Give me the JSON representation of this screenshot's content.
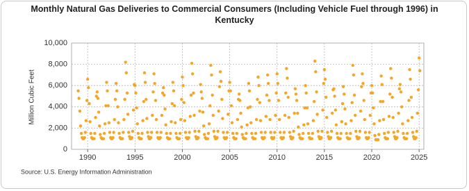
{
  "chart_data": {
    "type": "scatter",
    "title": "Monthly Natural Gas Deliveries to Commercial Consumers (Including Vehicle Fuel through 1996) in Kentucky",
    "y_label": "Million Cubic Feet",
    "source": "Source: U.S. Energy Information Administration",
    "color": "#f5a623",
    "grid": true,
    "xlim": [
      1988.3,
      2025.5
    ],
    "xticks": [
      1990,
      1995,
      2000,
      2005,
      2010,
      2015,
      2020,
      2025
    ],
    "ylim": [
      0,
      10000
    ],
    "yticks": [
      0,
      {
        "value": 2000,
        "label": "2,000"
      },
      {
        "value": 4000,
        "label": "4,000"
      },
      {
        "value": 6000,
        "label": "6,000"
      },
      {
        "value": 8000,
        "label": "8,000"
      },
      {
        "value": 10000,
        "label": "10,000"
      }
    ],
    "x": [
      1989,
      1989.08,
      1989.17,
      1989.25,
      1989.33,
      1989.42,
      1989.5,
      1989.58,
      1989.67,
      1989.75,
      1989.83,
      1989.92,
      1990,
      1990.08,
      1990.17,
      1990.25,
      1990.33,
      1990.42,
      1990.5,
      1990.58,
      1990.67,
      1990.75,
      1990.83,
      1990.92,
      1991,
      1991.08,
      1991.17,
      1991.25,
      1991.33,
      1991.42,
      1991.5,
      1991.58,
      1991.67,
      1991.75,
      1991.83,
      1991.92,
      1992,
      1992.08,
      1992.17,
      1992.25,
      1992.33,
      1992.42,
      1992.5,
      1992.58,
      1992.67,
      1992.75,
      1992.83,
      1992.92,
      1993,
      1993.08,
      1993.17,
      1993.25,
      1993.33,
      1993.42,
      1993.5,
      1993.58,
      1993.67,
      1993.75,
      1993.83,
      1993.92,
      1994,
      1994.08,
      1994.17,
      1994.25,
      1994.33,
      1994.42,
      1994.5,
      1994.58,
      1994.67,
      1994.75,
      1994.83,
      1994.92,
      1995,
      1995.08,
      1995.17,
      1995.25,
      1995.33,
      1995.42,
      1995.5,
      1995.58,
      1995.67,
      1995.75,
      1995.83,
      1995.92,
      1996,
      1996.08,
      1996.17,
      1996.25,
      1996.33,
      1996.42,
      1996.5,
      1996.58,
      1996.67,
      1996.75,
      1996.83,
      1996.92,
      1997,
      1997.08,
      1997.17,
      1997.25,
      1997.33,
      1997.42,
      1997.5,
      1997.58,
      1997.67,
      1997.75,
      1997.83,
      1997.92,
      1998,
      1998.08,
      1998.17,
      1998.25,
      1998.33,
      1998.42,
      1998.5,
      1998.58,
      1998.67,
      1998.75,
      1998.83,
      1998.92,
      1999,
      1999.08,
      1999.17,
      1999.25,
      1999.33,
      1999.42,
      1999.5,
      1999.58,
      1999.67,
      1999.75,
      1999.83,
      1999.92,
      2000,
      2000.08,
      2000.17,
      2000.25,
      2000.33,
      2000.42,
      2000.5,
      2000.58,
      2000.67,
      2000.75,
      2000.83,
      2000.92,
      2001,
      2001.08,
      2001.17,
      2001.25,
      2001.33,
      2001.42,
      2001.5,
      2001.58,
      2001.67,
      2001.75,
      2001.83,
      2001.92,
      2002,
      2002.08,
      2002.17,
      2002.25,
      2002.33,
      2002.42,
      2002.5,
      2002.58,
      2002.67,
      2002.75,
      2002.83,
      2002.92,
      2003,
      2003.08,
      2003.17,
      2003.25,
      2003.33,
      2003.42,
      2003.5,
      2003.58,
      2003.67,
      2003.75,
      2003.83,
      2003.92,
      2004,
      2004.08,
      2004.17,
      2004.25,
      2004.33,
      2004.42,
      2004.5,
      2004.58,
      2004.67,
      2004.75,
      2004.83,
      2004.92,
      2005,
      2005.08,
      2005.17,
      2005.25,
      2005.33,
      2005.42,
      2005.5,
      2005.58,
      2005.67,
      2005.75,
      2005.83,
      2005.92,
      2006,
      2006.08,
      2006.17,
      2006.25,
      2006.33,
      2006.42,
      2006.5,
      2006.58,
      2006.67,
      2006.75,
      2006.83,
      2006.92,
      2007,
      2007.08,
      2007.17,
      2007.25,
      2007.33,
      2007.42,
      2007.5,
      2007.58,
      2007.67,
      2007.75,
      2007.83,
      2007.92,
      2008,
      2008.08,
      2008.17,
      2008.25,
      2008.33,
      2008.42,
      2008.5,
      2008.58,
      2008.67,
      2008.75,
      2008.83,
      2008.92,
      2009,
      2009.08,
      2009.17,
      2009.25,
      2009.33,
      2009.42,
      2009.5,
      2009.58,
      2009.67,
      2009.75,
      2009.83,
      2009.92,
      2010,
      2010.08,
      2010.17,
      2010.25,
      2010.33,
      2010.42,
      2010.5,
      2010.58,
      2010.67,
      2010.75,
      2010.83,
      2010.92,
      2011,
      2011.08,
      2011.17,
      2011.25,
      2011.33,
      2011.42,
      2011.5,
      2011.58,
      2011.67,
      2011.75,
      2011.83,
      2011.92,
      2012,
      2012.08,
      2012.17,
      2012.25,
      2012.33,
      2012.42,
      2012.5,
      2012.58,
      2012.67,
      2012.75,
      2012.83,
      2012.92,
      2013,
      2013.08,
      2013.17,
      2013.25,
      2013.33,
      2013.42,
      2013.5,
      2013.58,
      2013.67,
      2013.75,
      2013.83,
      2013.92,
      2014,
      2014.08,
      2014.17,
      2014.25,
      2014.33,
      2014.42,
      2014.5,
      2014.58,
      2014.67,
      2014.75,
      2014.83,
      2014.92,
      2015,
      2015.08,
      2015.17,
      2015.25,
      2015.33,
      2015.42,
      2015.5,
      2015.58,
      2015.67,
      2015.75,
      2015.83,
      2015.92,
      2016,
      2016.08,
      2016.17,
      2016.25,
      2016.33,
      2016.42,
      2016.5,
      2016.58,
      2016.67,
      2016.75,
      2016.83,
      2016.92,
      2017,
      2017.08,
      2017.17,
      2017.25,
      2017.33,
      2017.42,
      2017.5,
      2017.58,
      2017.67,
      2017.75,
      2017.83,
      2017.92,
      2018,
      2018.08,
      2018.17,
      2018.25,
      2018.33,
      2018.42,
      2018.5,
      2018.58,
      2018.67,
      2018.75,
      2018.83,
      2018.92,
      2019,
      2019.08,
      2019.17,
      2019.25,
      2019.33,
      2019.42,
      2019.5,
      2019.58,
      2019.67,
      2019.75,
      2019.83,
      2019.92,
      2020,
      2020.08,
      2020.17,
      2020.25,
      2020.33,
      2020.42,
      2020.5,
      2020.58,
      2020.67,
      2020.75,
      2020.83,
      2020.92,
      2021,
      2021.08,
      2021.17,
      2021.25,
      2021.33,
      2021.42,
      2021.5,
      2021.58,
      2021.67,
      2021.75,
      2021.83,
      2021.92,
      2022,
      2022.08,
      2022.17,
      2022.25,
      2022.33,
      2022.42,
      2022.5,
      2022.58,
      2022.67,
      2022.75,
      2022.83,
      2022.92,
      2023,
      2023.08,
      2023.17,
      2023.25,
      2023.33,
      2023.42,
      2023.5,
      2023.58,
      2023.67,
      2023.75,
      2023.83,
      2023.92,
      2024,
      2024.08,
      2024.17,
      2024.25,
      2024.33,
      2024.42,
      2024.5,
      2024.58,
      2024.67,
      2024.75,
      2024.83,
      2024.92,
      2025,
      2025.08
    ],
    "values": [
      5500,
      4800,
      3600,
      2200,
      1500,
      1100,
      1000,
      1000,
      1100,
      1600,
      2700,
      4600,
      6600,
      5800,
      4300,
      2600,
      1500,
      1100,
      1000,
      1000,
      1000,
      1500,
      3000,
      5000,
      5400,
      4800,
      3500,
      2200,
      1400,
      1100,
      1000,
      1000,
      1000,
      1500,
      2400,
      4100,
      6300,
      5500,
      4100,
      2500,
      1600,
      1100,
      1000,
      1000,
      1100,
      1600,
      2800,
      4700,
      6200,
      5500,
      4000,
      2500,
      1500,
      1100,
      1000,
      1000,
      1000,
      1600,
      2800,
      4700,
      8200,
      7200,
      5300,
      3300,
      1600,
      1200,
      1000,
      1000,
      1100,
      1700,
      3700,
      6100,
      6000,
      5300,
      3900,
      2400,
      1500,
      1100,
      1000,
      1000,
      1000,
      1500,
      2700,
      4500,
      7200,
      6300,
      4700,
      2900,
      1600,
      1200,
      1000,
      1000,
      1100,
      1600,
      3200,
      5400,
      7100,
      6200,
      4600,
      2800,
      1600,
      1100,
      1000,
      1000,
      1100,
      1600,
      3200,
      5300,
      5800,
      5100,
      3800,
      2300,
      1500,
      1100,
      1000,
      1000,
      1000,
      1500,
      2600,
      4300,
      6300,
      5500,
      4100,
      2500,
      1500,
      1100,
      1000,
      1000,
      1000,
      1500,
      2800,
      4700,
      6800,
      6000,
      4400,
      2700,
      1600,
      1100,
      1000,
      1000,
      1100,
      1600,
      3100,
      5100,
      8100,
      7100,
      5300,
      3200,
      1700,
      1200,
      1000,
      1000,
      1100,
      1700,
      3600,
      6100,
      5400,
      4800,
      3500,
      2200,
      1400,
      1100,
      1000,
      1000,
      1000,
      1500,
      2400,
      4100,
      7900,
      7000,
      5100,
      3200,
      1700,
      1200,
      1000,
      1000,
      1100,
      1700,
      3600,
      5900,
      7300,
      6400,
      4700,
      2900,
      1600,
      1100,
      1000,
      1000,
      1100,
      1600,
      3300,
      5500,
      6300,
      5500,
      4100,
      2500,
      1500,
      1100,
      1000,
      1000,
      1000,
      1500,
      2800,
      4700,
      5200,
      4600,
      3400,
      2100,
      1400,
      1100,
      1000,
      1000,
      1000,
      1500,
      2300,
      3900,
      6200,
      5500,
      4000,
      2500,
      1500,
      1100,
      1000,
      1000,
      1000,
      1500,
      2800,
      4700,
      6800,
      6000,
      4400,
      2700,
      1600,
      1100,
      1000,
      1000,
      1100,
      1600,
      3100,
      5100,
      7000,
      6200,
      4600,
      2800,
      1600,
      1100,
      1000,
      1000,
      1100,
      1600,
      3200,
      5300,
      7100,
      6200,
      4600,
      2800,
      1600,
      1100,
      1000,
      1000,
      1100,
      1600,
      3200,
      5300,
      7600,
      6700,
      4900,
      3000,
      1600,
      1200,
      1000,
      1000,
      1100,
      1700,
      3400,
      5700,
      5200,
      4600,
      3400,
      2100,
      1400,
      1100,
      1000,
      1000,
      1000,
      1500,
      2300,
      3900,
      6000,
      5300,
      3900,
      2400,
      1500,
      1100,
      1000,
      1000,
      1000,
      1500,
      2700,
      4500,
      8300,
      7300,
      5400,
      3300,
      1700,
      1200,
      1000,
      1000,
      1100,
      1700,
      3700,
      6200,
      7500,
      6600,
      4900,
      3000,
      1600,
      1200,
      1000,
      1000,
      1100,
      1700,
      3400,
      5600,
      5700,
      5000,
      3700,
      2300,
      1500,
      1100,
      1000,
      1000,
      1000,
      1500,
      2600,
      4300,
      5900,
      5200,
      3800,
      2400,
      1500,
      1100,
      1000,
      1000,
      1000,
      1500,
      2700,
      4400,
      7900,
      7000,
      5100,
      3200,
      1700,
      1200,
      1000,
      1000,
      1100,
      1700,
      3600,
      5900,
      7100,
      6200,
      4600,
      2800,
      1600,
      1100,
      1000,
      1000,
      1100,
      1600,
      3200,
      5300,
      6000,
      5300,
      3900,
      2400,
      1300,
      900,
      900,
      900,
      900,
      1400,
      2700,
      4500,
      6900,
      6100,
      4500,
      2800,
      1500,
      1100,
      1000,
      1000,
      1000,
      1600,
      3100,
      5200,
      7600,
      6700,
      4900,
      3000,
      1600,
      1200,
      1000,
      1000,
      1100,
      1700,
      3400,
      5700,
      6100,
      5400,
      4000,
      2400,
      1500,
      1100,
      1000,
      1000,
      1000,
      1500,
      2700,
      4600,
      7500,
      6600,
      4900,
      3000,
      1600,
      1200,
      1000,
      1000,
      1100,
      1700,
      3400,
      5600,
      8600,
      7400
    ]
  }
}
